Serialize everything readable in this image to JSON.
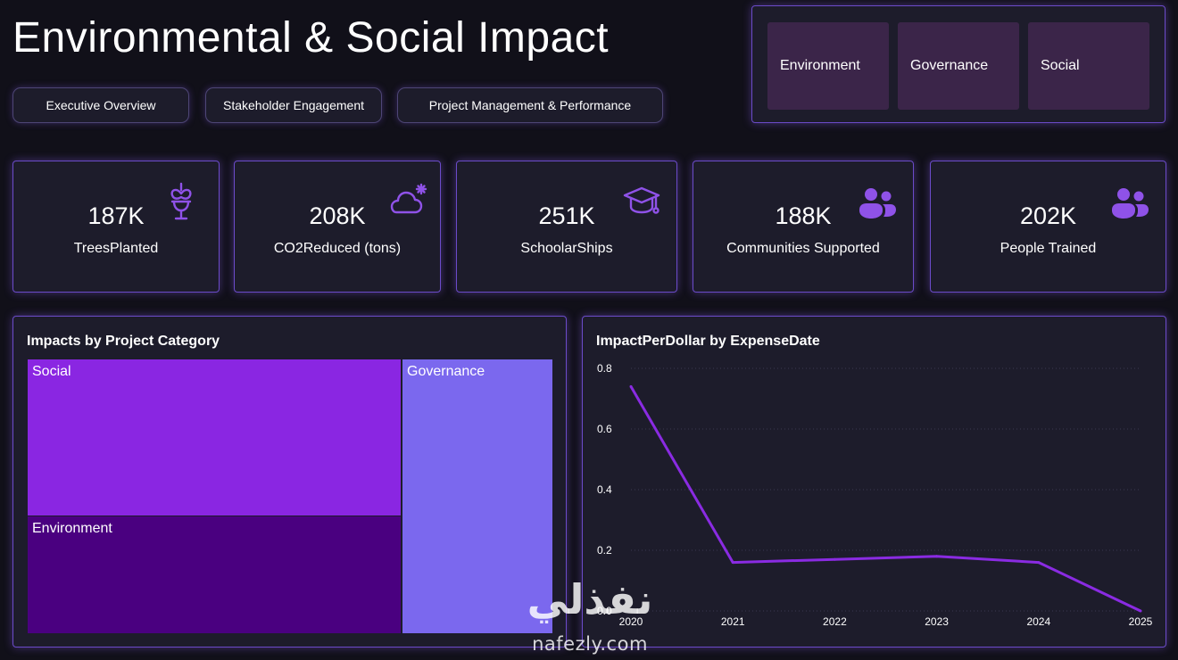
{
  "page": {
    "title": "Environmental & Social Impact"
  },
  "nav": [
    {
      "label": "Executive Overview"
    },
    {
      "label": "Stakeholder Engagement"
    },
    {
      "label": "Project Management & Performance"
    }
  ],
  "slicer": [
    {
      "label": "Environment"
    },
    {
      "label": "Governance"
    },
    {
      "label": "Social"
    }
  ],
  "kpis": [
    {
      "value": "187K",
      "label": "TreesPlanted",
      "icon": "tree-icon"
    },
    {
      "value": "208K",
      "label": "CO2Reduced (tons)",
      "icon": "cloud-icon"
    },
    {
      "value": "251K",
      "label": "SchoolarShips",
      "icon": "graduation-cap-icon"
    },
    {
      "value": "188K",
      "label": "Communities Supported",
      "icon": "people-icon"
    },
    {
      "value": "202K",
      "label": "People Trained",
      "icon": "people-icon"
    }
  ],
  "colors": {
    "accent": "#8f52e8",
    "social": "#8a26e2",
    "environment": "#4a0080",
    "governance": "#7b68ee",
    "line": "#8a2be2",
    "tile": "#3b2549"
  },
  "treemap": {
    "title": "Impacts by Project Category",
    "chart_data": {
      "type": "treemap",
      "items": [
        {
          "name": "Social",
          "share": 0.417
        },
        {
          "name": "Environment",
          "share": 0.297
        },
        {
          "name": "Governance",
          "share": 0.286
        }
      ]
    }
  },
  "linechart": {
    "title": "ImpactPerDollar by ExpenseDate",
    "chart_data": {
      "type": "line",
      "x": [
        "2020",
        "2021",
        "2022",
        "2023",
        "2024",
        "2025"
      ],
      "values": [
        0.74,
        0.16,
        0.17,
        0.18,
        0.16,
        0.0
      ],
      "ylim": [
        0,
        0.8
      ],
      "yticks": [
        "0.0",
        "0.2",
        "0.4",
        "0.6",
        "0.8"
      ],
      "grid": true
    }
  },
  "watermark": {
    "arabic": "نفذلي",
    "latin": "nafezly.com"
  }
}
